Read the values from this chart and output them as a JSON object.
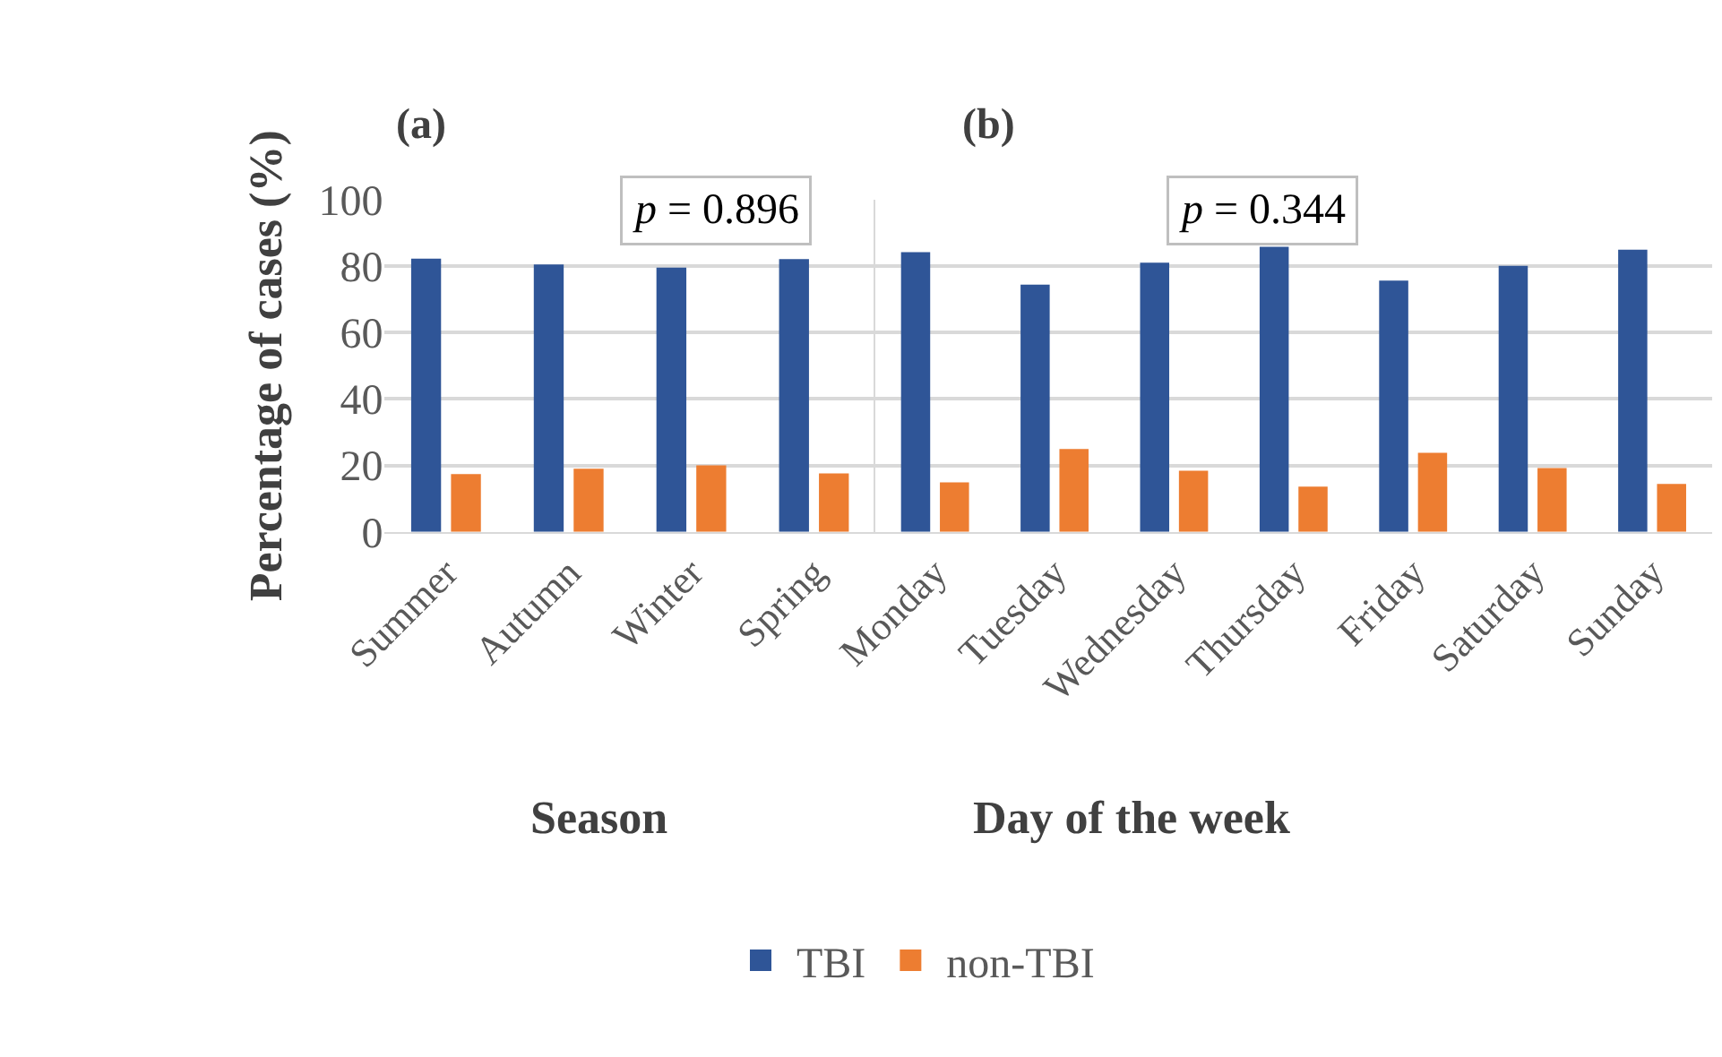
{
  "chart_data": [
    {
      "type": "bar",
      "xlabel": "Season",
      "ylabel": "Percentage of cases (%)",
      "categories": [
        "Summer",
        "Autumn",
        "Winter",
        "Spring"
      ],
      "series": [
        {
          "name": "TBI",
          "color": "#2f5597",
          "values": [
            82.2,
            80.5,
            79.5,
            82.1
          ]
        },
        {
          "name": "non-TBI",
          "color": "#ed7d31",
          "values": [
            17.4,
            19.0,
            20.0,
            17.6
          ]
        }
      ],
      "ylim": [
        0,
        100
      ],
      "yticks": [
        0,
        20,
        40,
        60,
        80,
        100
      ],
      "grid": "y",
      "legend": "bottom",
      "annotations": [
        "(a)",
        "p = 0.896"
      ]
    },
    {
      "type": "bar",
      "xlabel": "Day of the week",
      "categories": [
        "Monday",
        "Tuesday",
        "Wednesday",
        "Thursday",
        "Friday",
        "Saturday",
        "Sunday"
      ],
      "series": [
        {
          "color": "#2f5597",
          "values": [
            84.2,
            74.4,
            81.0,
            85.8,
            75.6,
            80.1,
            84.9
          ]
        },
        {
          "color": "#ed7d31",
          "values": [
            14.9,
            24.9,
            18.4,
            13.6,
            23.8,
            19.2,
            14.4
          ]
        }
      ],
      "ylim": [
        0,
        100
      ],
      "yticks": [
        0,
        20,
        40,
        60,
        80,
        100
      ],
      "grid": "y",
      "tick_labels": "x",
      "annotations": [
        "(b)",
        "p = 0.344"
      ]
    }
  ]
}
